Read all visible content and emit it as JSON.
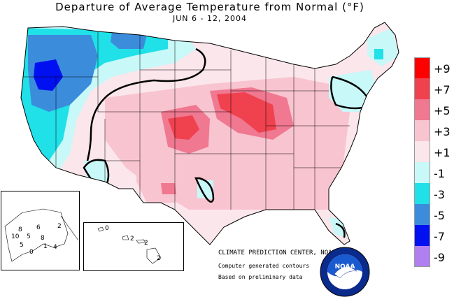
{
  "title": "Departure of Average Temperature from Normal (°F)",
  "subtitle": "JUN 6 - 12, 2004",
  "legend": {
    "items": [
      {
        "label": "+9",
        "color": "#ff0000"
      },
      {
        "label": "+7",
        "color": "#f0414f"
      },
      {
        "label": "+5",
        "color": "#f07890"
      },
      {
        "label": "+3",
        "color": "#f8c4d0"
      },
      {
        "label": "+1",
        "color": "#fbe6ec"
      },
      {
        "label": "-1",
        "color": "#c8f8f8"
      },
      {
        "label": "-3",
        "color": "#20e0e8"
      },
      {
        "label": "-5",
        "color": "#3c8cdc"
      },
      {
        "label": "-7",
        "color": "#0010f0"
      },
      {
        "label": "-9",
        "color": "#b080f0"
      }
    ]
  },
  "credits": {
    "center": "CLIMATE PREDICTION CENTER, NOAA",
    "contours": "Computer generated contours",
    "basis": "Based on preliminary data"
  },
  "logo": {
    "text": "NOAA",
    "ring_text": "NATIONAL OCEANIC AND ATMOSPHERIC ADMINISTRATION • U.S. DEPARTMENT OF COMMERCE"
  },
  "alaska_labels": [
    "8",
    "6",
    "2",
    "10",
    "5",
    "5",
    "8",
    "4",
    "0",
    "1"
  ],
  "hawaii_labels": [
    "0",
    "2",
    "2",
    "2"
  ]
}
